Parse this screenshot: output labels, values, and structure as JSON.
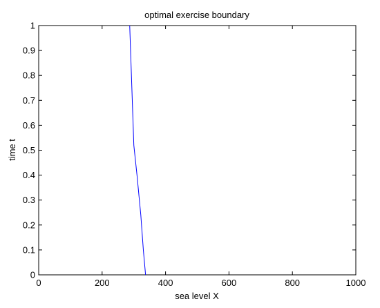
{
  "chart_data": {
    "type": "line",
    "title": "optimal exercise boundary",
    "xlabel": "sea level X",
    "ylabel": "time t",
    "xlim": [
      0,
      1000
    ],
    "ylim": [
      0,
      1
    ],
    "x_ticks": [
      0,
      200,
      400,
      600,
      800,
      1000
    ],
    "y_ticks": [
      0,
      0.1,
      0.2,
      0.3,
      0.4,
      0.5,
      0.6,
      0.7,
      0.8,
      0.9,
      1
    ],
    "x_tick_labels": [
      "0",
      "200",
      "400",
      "600",
      "800",
      "1000"
    ],
    "y_tick_labels": [
      "0",
      "0.1",
      "0.2",
      "0.3",
      "0.4",
      "0.5",
      "0.6",
      "0.7",
      "0.8",
      "0.9",
      "1"
    ],
    "grid": false,
    "series": [
      {
        "color": "#0000ff",
        "x": [
          287,
          300,
          310,
          322,
          330,
          337
        ],
        "y": [
          1.0,
          0.52,
          0.4,
          0.24,
          0.1,
          0.0
        ]
      }
    ]
  }
}
